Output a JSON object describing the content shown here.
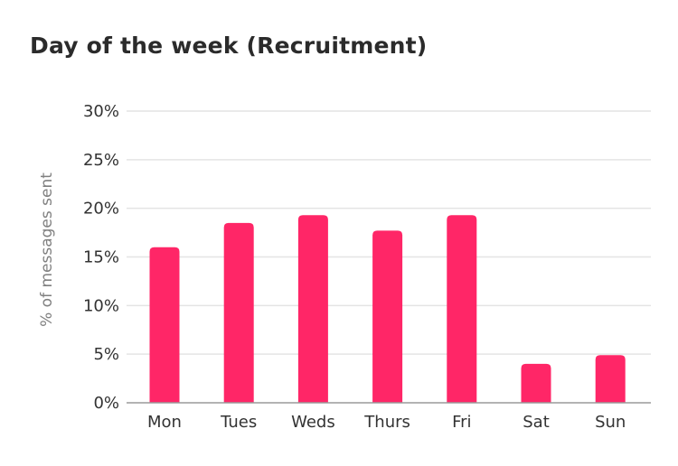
{
  "chart_data": {
    "type": "bar",
    "title": "Day of the week (Recruitment)",
    "xlabel": "",
    "ylabel": "% of messages sent",
    "categories": [
      "Mon",
      "Tues",
      "Weds",
      "Thurs",
      "Fri",
      "Sat",
      "Sun"
    ],
    "values": [
      16,
      18.5,
      19.3,
      17.7,
      19.3,
      4,
      4.9
    ],
    "ylim": [
      0,
      30
    ],
    "yticks": [
      0,
      5,
      10,
      15,
      20,
      25,
      30
    ],
    "ytick_suffix": "%",
    "grid": true,
    "legend": "none",
    "bar_color": "#ff2667",
    "grid_color": "#e4e4e4",
    "axis_color": "#9a9a9a"
  }
}
